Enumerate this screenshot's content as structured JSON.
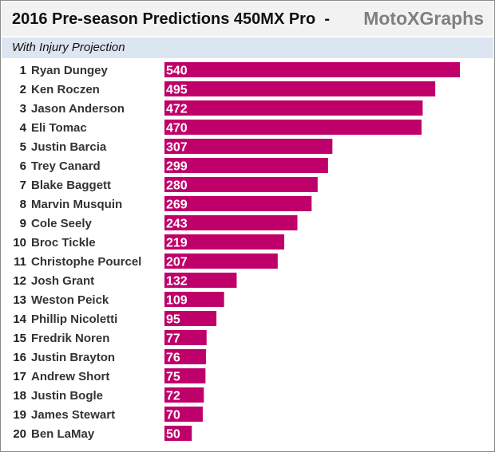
{
  "header": {
    "title": "2016 Pre-season Predictions 450MX Pro",
    "separator": "-",
    "brand": "MotoXGraphs",
    "subtitle": "With Injury Projection"
  },
  "colors": {
    "bar": "#c0006a",
    "header_bg": "#f2f2f2",
    "subheader_bg": "#dce6f1"
  },
  "chart_data": {
    "type": "bar",
    "orientation": "horizontal",
    "title": "2016 Pre-season Predictions 450MX Pro",
    "subtitle": "With Injury Projection",
    "ranks": [
      "1",
      "2",
      "3",
      "4",
      "5",
      "6",
      "7",
      "8",
      "9",
      "10",
      "11",
      "12",
      "13",
      "14",
      "15",
      "16",
      "17",
      "18",
      "19",
      "20"
    ],
    "categories": [
      "Ryan Dungey",
      "Ken Roczen",
      "Jason Anderson",
      "Eli Tomac",
      "Justin Barcia",
      "Trey Canard",
      "Blake Baggett",
      "Marvin Musquin",
      "Cole Seely",
      "Broc Tickle",
      "Christophe Pourcel",
      "Josh Grant",
      "Weston Peick",
      "Phillip Nicoletti",
      "Fredrik Noren",
      "Justin Brayton",
      "Andrew Short",
      "Justin Bogle",
      "James Stewart",
      "Ben LaMay"
    ],
    "values": [
      540,
      495,
      472,
      470,
      307,
      299,
      280,
      269,
      243,
      219,
      207,
      132,
      109,
      95,
      77,
      76,
      75,
      72,
      70,
      50
    ],
    "xlim": [
      0,
      540
    ],
    "grid": false,
    "legend": "none",
    "data_labels": "inside-left"
  }
}
